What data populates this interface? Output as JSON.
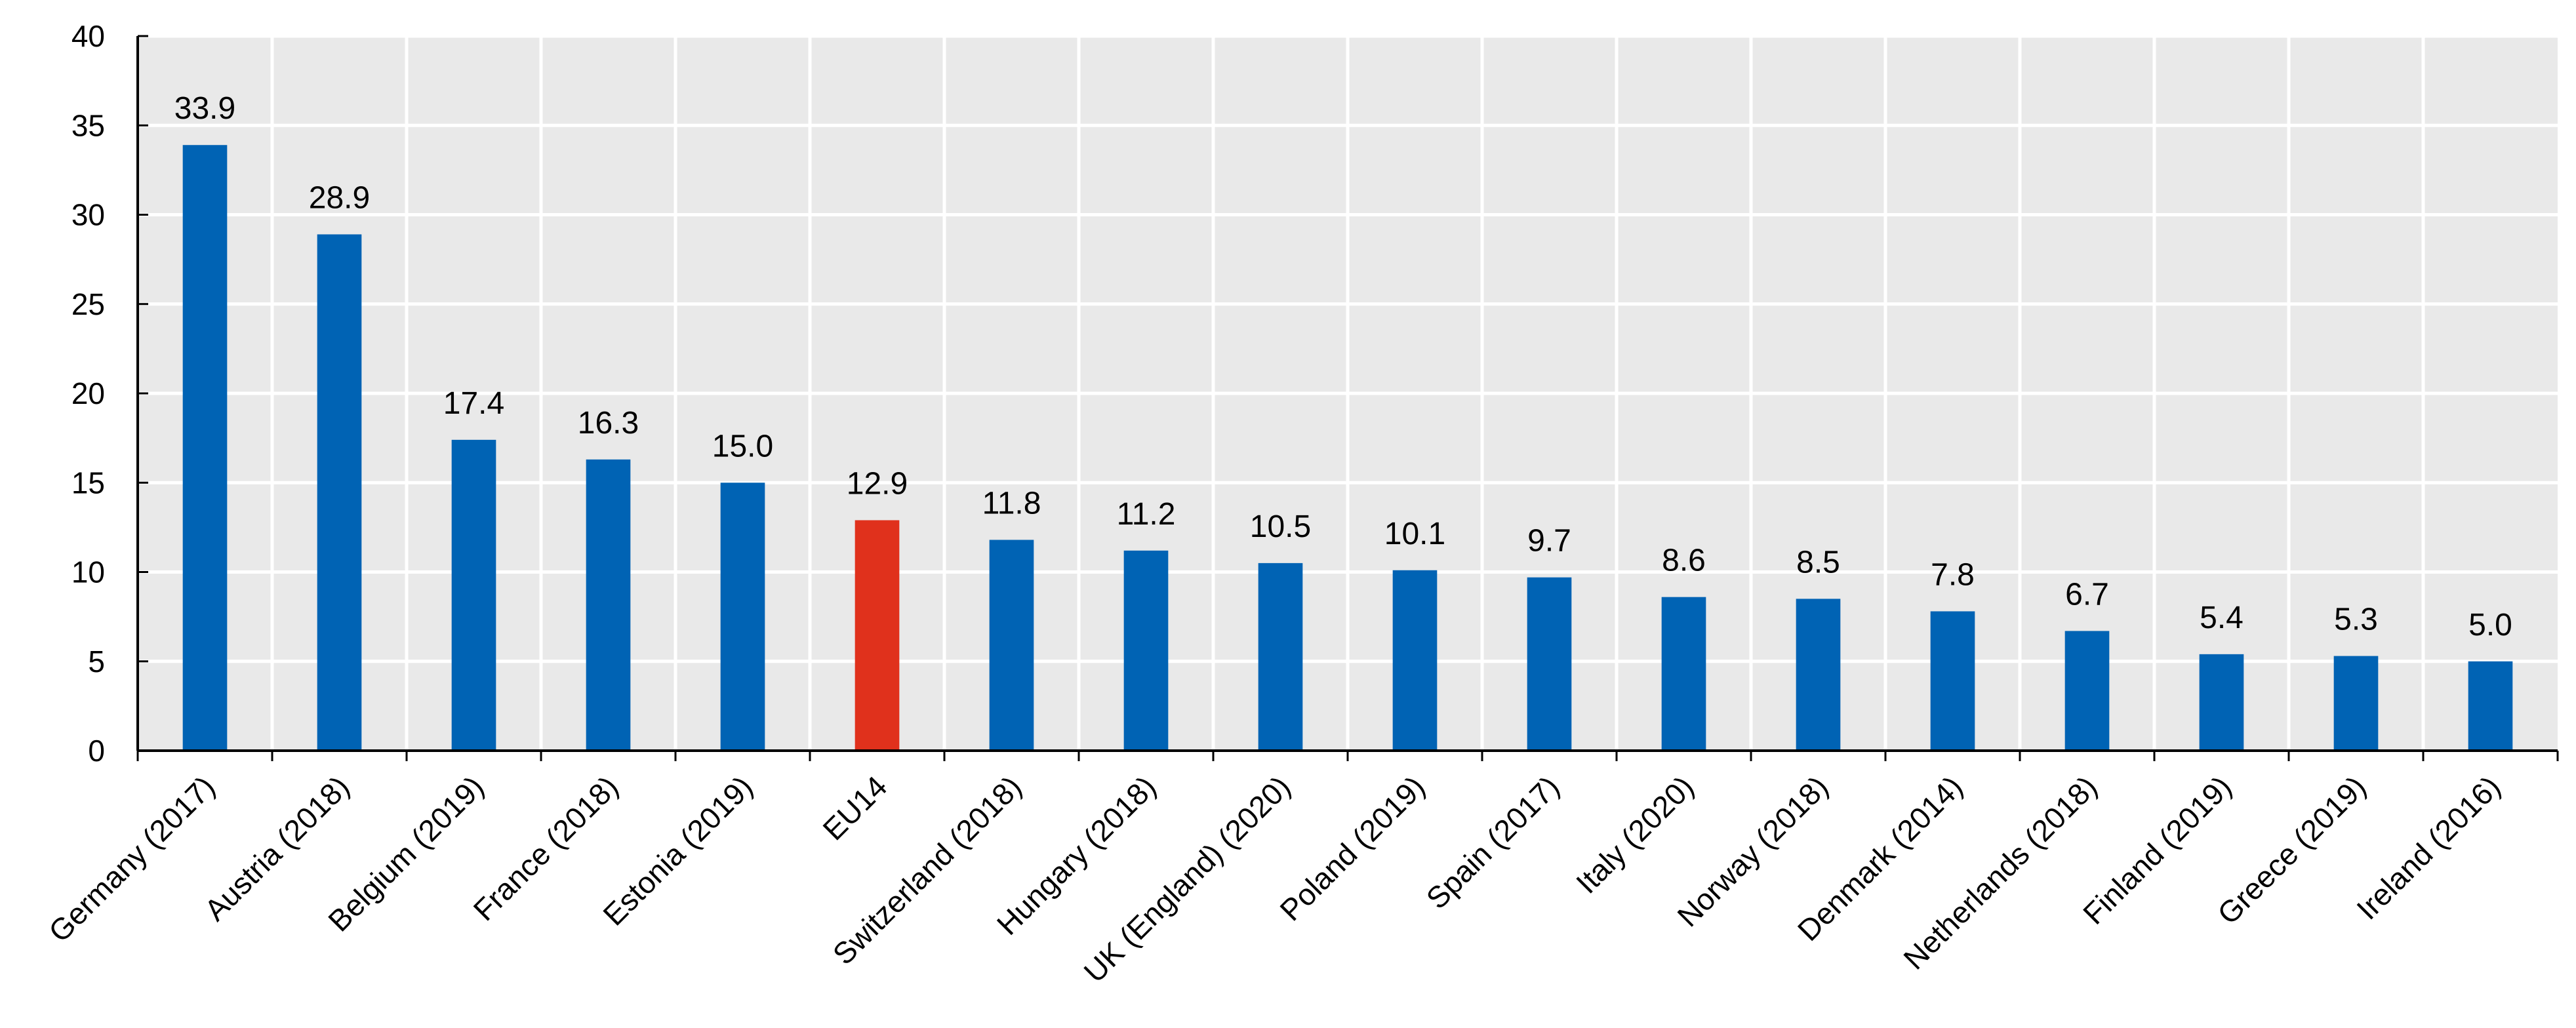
{
  "chart_data": {
    "type": "bar",
    "title": "",
    "xlabel": "",
    "ylabel": "",
    "ylim": [
      0,
      40
    ],
    "yticks": [
      0,
      5,
      10,
      15,
      20,
      25,
      30,
      35,
      40
    ],
    "grid": true,
    "categories": [
      "Germany (2017)",
      "Austria (2018)",
      "Belgium (2019)",
      "France (2018)",
      "Estonia (2019)",
      "EU14",
      "Switzerland (2018)",
      "Hungary (2018)",
      "UK (England) (2020)",
      "Poland (2019)",
      "Spain (2017)",
      "Italy (2020)",
      "Norway (2018)",
      "Denmark (2014)",
      "Netherlands (2018)",
      "Finland (2019)",
      "Greece (2019)",
      "Ireland (2016)"
    ],
    "values": [
      33.9,
      28.9,
      17.4,
      16.3,
      15.0,
      12.9,
      11.8,
      11.2,
      10.5,
      10.1,
      9.7,
      8.6,
      8.5,
      7.8,
      6.7,
      5.4,
      5.3,
      5.0
    ],
    "value_labels": [
      "33.9",
      "28.9",
      "17.4",
      "16.3",
      "15.0",
      "12.9",
      "11.8",
      "11.2",
      "10.5",
      "10.1",
      "9.7",
      "8.6",
      "8.5",
      "7.8",
      "6.7",
      "5.4",
      "5.3",
      "5.0"
    ],
    "highlight_category": "EU14",
    "colors": {
      "bar": "#0063b4",
      "highlight": "#e0311c",
      "plot_background": "#e9e9e9",
      "gridline": "#ffffff",
      "axis": "#000000"
    }
  }
}
